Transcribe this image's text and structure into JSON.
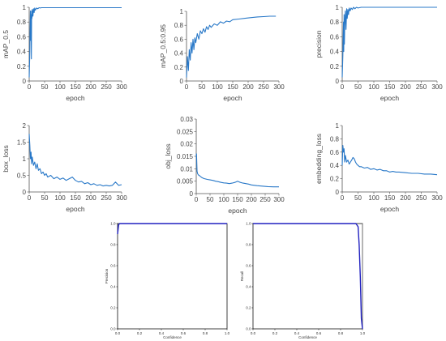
{
  "colors": {
    "series": "#2878c8",
    "curve": "#2020c0",
    "axis": "#555555",
    "box": "#111111",
    "refline": "#888888"
  },
  "chart_data": [
    {
      "id": "map05",
      "type": "line",
      "xlabel": "epoch",
      "ylabel": "mAP_0.5",
      "xlim": [
        0,
        300
      ],
      "ylim": [
        0,
        1
      ],
      "xticks": [
        "0",
        "50",
        "100",
        "150",
        "200",
        "250",
        "300"
      ],
      "yticks": [
        "0",
        "0.2",
        "0.4",
        "0.6",
        "0.8",
        "1"
      ],
      "series": [
        {
          "x": [
            0,
            2,
            3,
            4,
            5,
            6,
            7,
            8,
            9,
            10,
            12,
            14,
            16,
            18,
            20,
            24,
            28,
            32,
            36,
            40,
            50,
            60,
            80,
            100,
            150,
            200,
            250,
            300
          ],
          "y": [
            0.05,
            0.4,
            0.7,
            0.95,
            0.55,
            0.9,
            0.3,
            0.95,
            0.85,
            0.97,
            0.88,
            0.98,
            0.93,
            0.99,
            0.96,
            0.99,
            0.98,
            0.995,
            0.99,
            0.995,
            0.995,
            0.995,
            0.995,
            0.995,
            0.995,
            0.995,
            0.995,
            0.995
          ]
        }
      ]
    },
    {
      "id": "map0595",
      "type": "line",
      "xlabel": "epoch",
      "ylabel": "mAP_0.5:0.95",
      "xlim": [
        0,
        300
      ],
      "ylim": [
        0,
        1
      ],
      "xticks": [
        "0",
        "50",
        "100",
        "150",
        "200",
        "250",
        "300"
      ],
      "yticks": [
        "0",
        "0.2",
        "0.4",
        "0.6",
        "0.8",
        "1"
      ],
      "series": [
        {
          "x": [
            0,
            3,
            6,
            9,
            12,
            15,
            18,
            21,
            24,
            27,
            30,
            35,
            40,
            45,
            50,
            55,
            60,
            65,
            70,
            75,
            80,
            90,
            100,
            110,
            120,
            130,
            140,
            150,
            170,
            190,
            210,
            230,
            250,
            270,
            290
          ],
          "y": [
            0.05,
            0.35,
            0.15,
            0.45,
            0.3,
            0.55,
            0.4,
            0.6,
            0.45,
            0.62,
            0.55,
            0.68,
            0.6,
            0.72,
            0.68,
            0.75,
            0.7,
            0.78,
            0.74,
            0.8,
            0.77,
            0.82,
            0.8,
            0.85,
            0.83,
            0.86,
            0.85,
            0.88,
            0.89,
            0.9,
            0.91,
            0.92,
            0.925,
            0.93,
            0.93
          ]
        }
      ]
    },
    {
      "id": "precision",
      "type": "line",
      "xlabel": "epoch",
      "ylabel": "precision",
      "xlim": [
        0,
        300
      ],
      "ylim": [
        0,
        1
      ],
      "xticks": [
        "0",
        "50",
        "100",
        "150",
        "200",
        "250",
        "300"
      ],
      "yticks": [
        "0",
        "0.2",
        "0.4",
        "0.6",
        "0.8",
        "1"
      ],
      "series": [
        {
          "x": [
            0,
            2,
            3,
            4,
            5,
            6,
            7,
            8,
            10,
            12,
            14,
            16,
            18,
            20,
            22,
            25,
            28,
            32,
            36,
            40,
            45,
            50,
            60,
            70,
            80,
            100,
            150,
            200,
            250,
            300
          ],
          "y": [
            0.05,
            0.35,
            0.6,
            0.8,
            0.4,
            0.9,
            0.5,
            0.75,
            0.95,
            0.7,
            0.98,
            0.85,
            0.97,
            0.9,
            0.99,
            0.95,
            0.99,
            0.97,
            1.0,
            0.98,
            1.0,
            0.99,
            1.0,
            1.0,
            1.0,
            1.0,
            1.0,
            1.0,
            1.0,
            1.0
          ]
        }
      ]
    },
    {
      "id": "boxloss",
      "type": "line",
      "xlabel": "epoch",
      "ylabel": "box_loss",
      "xlim": [
        0,
        300
      ],
      "ylim": [
        0,
        2
      ],
      "xticks": [
        "0",
        "50",
        "100",
        "150",
        "200",
        "250",
        "300"
      ],
      "yticks": [
        "0",
        "0.5",
        "1",
        "1.5",
        "2"
      ],
      "series": [
        {
          "x": [
            0,
            2,
            4,
            6,
            8,
            10,
            14,
            18,
            22,
            26,
            30,
            35,
            40,
            45,
            50,
            55,
            60,
            70,
            80,
            90,
            100,
            110,
            120,
            130,
            140,
            150,
            160,
            170,
            180,
            190,
            200,
            210,
            220,
            230,
            240,
            250,
            260,
            270,
            280,
            290,
            300
          ],
          "y": [
            1.75,
            1.4,
            1.0,
            1.2,
            0.85,
            1.05,
            0.8,
            0.9,
            0.7,
            0.85,
            0.65,
            0.7,
            0.55,
            0.6,
            0.5,
            0.55,
            0.45,
            0.5,
            0.4,
            0.45,
            0.38,
            0.42,
            0.35,
            0.4,
            0.45,
            0.35,
            0.3,
            0.32,
            0.25,
            0.28,
            0.22,
            0.25,
            0.2,
            0.22,
            0.18,
            0.2,
            0.18,
            0.2,
            0.3,
            0.2,
            0.22
          ]
        }
      ]
    },
    {
      "id": "objloss",
      "type": "line",
      "xlabel": "epoch",
      "ylabel": "obj_loss",
      "xlim": [
        0,
        300
      ],
      "ylim": [
        0,
        0.03
      ],
      "xticks": [
        "0",
        "50",
        "100",
        "150",
        "200",
        "250",
        "300"
      ],
      "yticks": [
        "0",
        "0.005",
        "0.01",
        "0.015",
        "0.02",
        "0.025",
        "0.03"
      ],
      "series": [
        {
          "x": [
            0,
            1,
            2,
            3,
            5,
            8,
            12,
            16,
            20,
            25,
            30,
            40,
            50,
            60,
            70,
            80,
            90,
            100,
            110,
            120,
            130,
            140,
            150,
            160,
            170,
            180,
            190,
            200,
            220,
            240,
            260,
            280,
            300
          ],
          "y": [
            0.015,
            0.016,
            0.012,
            0.009,
            0.008,
            0.0075,
            0.0072,
            0.0068,
            0.0065,
            0.0062,
            0.006,
            0.0057,
            0.0055,
            0.0053,
            0.005,
            0.0048,
            0.0045,
            0.0043,
            0.0042,
            0.004,
            0.0042,
            0.0045,
            0.005,
            0.0045,
            0.0042,
            0.004,
            0.0038,
            0.0035,
            0.0032,
            0.003,
            0.0028,
            0.0027,
            0.0027
          ]
        }
      ]
    },
    {
      "id": "embloss",
      "type": "line",
      "xlabel": "epoch",
      "ylabel": "embedding_loss",
      "xlim": [
        0,
        300
      ],
      "ylim": [
        0,
        1
      ],
      "xticks": [
        "0",
        "50",
        "100",
        "150",
        "200",
        "250",
        "300"
      ],
      "yticks": [
        "0",
        "0.2",
        "0.4",
        "0.6",
        "0.8",
        "1"
      ],
      "series": [
        {
          "x": [
            0,
            2,
            4,
            6,
            8,
            10,
            14,
            18,
            22,
            26,
            30,
            34,
            38,
            42,
            46,
            50,
            55,
            60,
            70,
            80,
            90,
            100,
            110,
            120,
            130,
            140,
            150,
            160,
            170,
            180,
            200,
            220,
            240,
            260,
            280,
            300
          ],
          "y": [
            0.4,
            0.7,
            0.6,
            0.65,
            0.45,
            0.55,
            0.45,
            0.48,
            0.42,
            0.45,
            0.48,
            0.52,
            0.5,
            0.45,
            0.42,
            0.4,
            0.38,
            0.38,
            0.36,
            0.37,
            0.34,
            0.35,
            0.33,
            0.34,
            0.32,
            0.32,
            0.3,
            0.31,
            0.3,
            0.3,
            0.29,
            0.28,
            0.28,
            0.27,
            0.27,
            0.26
          ]
        }
      ]
    },
    {
      "id": "precconf",
      "type": "line",
      "xlabel": "Confidence",
      "ylabel": "Precision",
      "xlim": [
        0,
        1
      ],
      "ylim": [
        0,
        1
      ],
      "xticks": [
        "0.0",
        "0.2",
        "0.4",
        "0.6",
        "0.8",
        "1.0"
      ],
      "yticks": [
        "0.0",
        "0.2",
        "0.4",
        "0.6",
        "0.8",
        "1.0"
      ],
      "series": [
        {
          "x": [
            0,
            0.005,
            0.01,
            0.02,
            1.0
          ],
          "y": [
            0.9,
            0.95,
            0.99,
            1.0,
            1.0
          ]
        }
      ]
    },
    {
      "id": "recconf",
      "type": "line",
      "xlabel": "Confidence",
      "ylabel": "Recall",
      "xlim": [
        0,
        1
      ],
      "ylim": [
        0,
        1
      ],
      "xticks": [
        "0.0",
        "0.2",
        "0.4",
        "0.6",
        "0.8",
        "1.0"
      ],
      "yticks": [
        "0.0",
        "0.2",
        "0.4",
        "0.6",
        "0.8",
        "1.0"
      ],
      "series": [
        {
          "x": [
            0,
            0.9,
            0.94,
            0.96,
            0.97,
            0.98,
            0.99,
            1.0
          ],
          "y": [
            1.0,
            1.0,
            1.0,
            0.97,
            0.8,
            0.5,
            0.1,
            0.0
          ]
        }
      ]
    }
  ]
}
